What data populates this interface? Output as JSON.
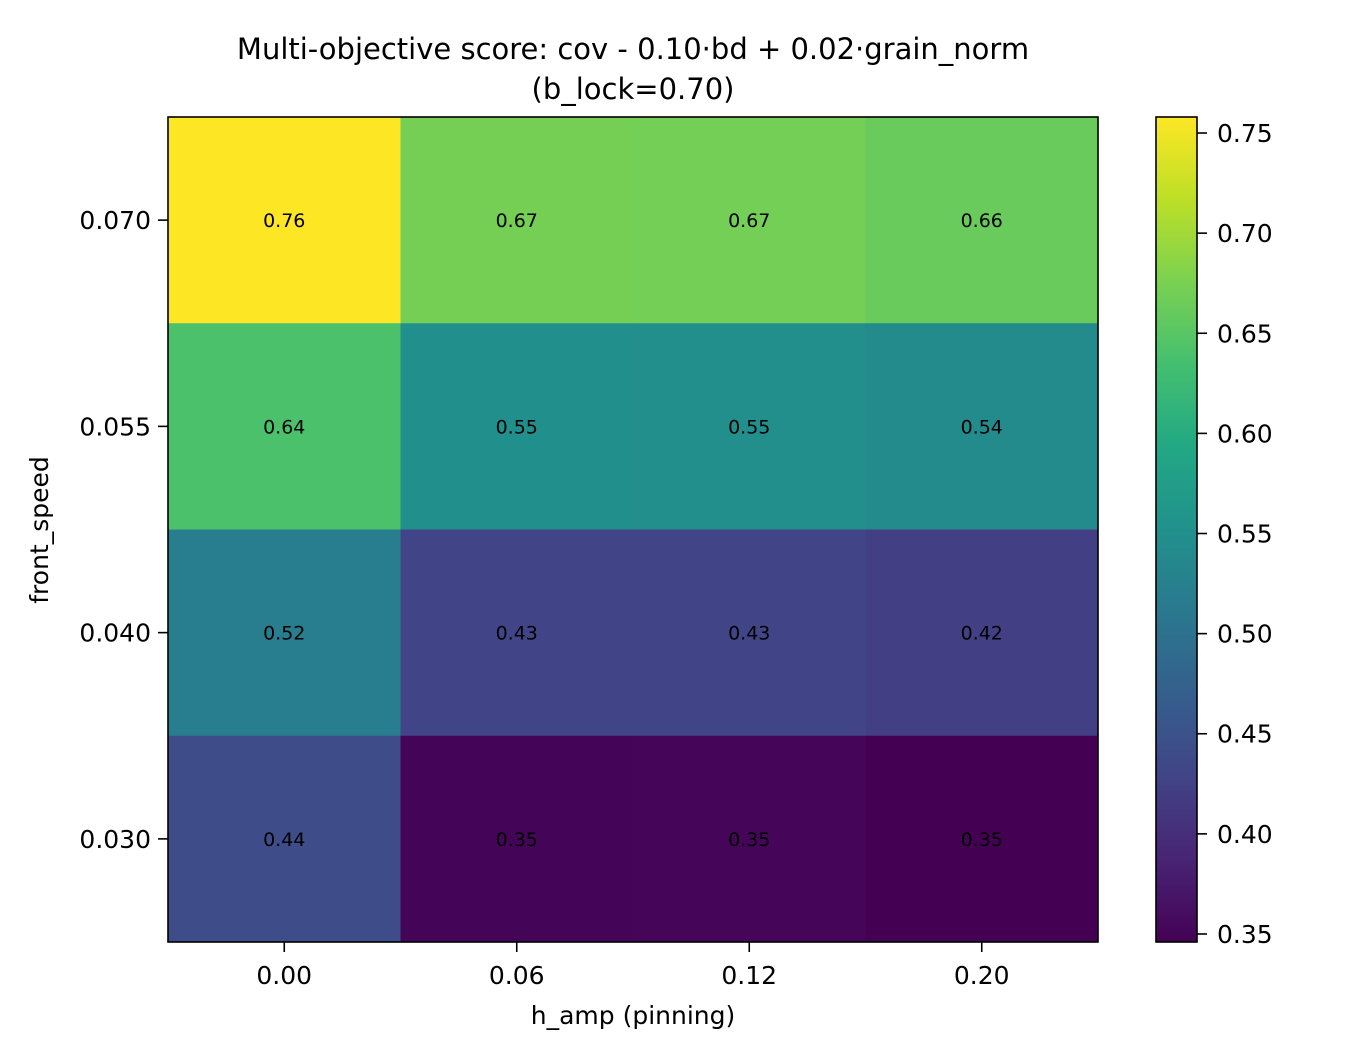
{
  "chart_data": {
    "type": "heatmap",
    "title": "Multi-objective score: cov - 0.10·bd + 0.02·grain_norm",
    "subtitle": "(b_lock=0.70)",
    "xlabel": "h_amp (pinning)",
    "ylabel": "front_speed",
    "x_categories": [
      "0.00",
      "0.06",
      "0.12",
      "0.20"
    ],
    "y_categories_top_to_bottom": [
      "0.070",
      "0.055",
      "0.040",
      "0.030"
    ],
    "values": [
      [
        0.758,
        0.672,
        0.67,
        0.662
      ],
      [
        0.64,
        0.55,
        0.548,
        0.542
      ],
      [
        0.52,
        0.43,
        0.428,
        0.422
      ],
      [
        0.44,
        0.35,
        0.352,
        0.346
      ]
    ],
    "value_labels": [
      [
        "0.76",
        "0.67",
        "0.67",
        "0.66"
      ],
      [
        "0.64",
        "0.55",
        "0.55",
        "0.54"
      ],
      [
        "0.52",
        "0.43",
        "0.43",
        "0.42"
      ],
      [
        "0.44",
        "0.35",
        "0.35",
        "0.35"
      ]
    ],
    "colormap": "viridis",
    "colorbar": {
      "range": [
        0.346,
        0.758
      ],
      "ticks": [
        0.35,
        0.4,
        0.45,
        0.5,
        0.55,
        0.6,
        0.65,
        0.7,
        0.75
      ],
      "tick_labels": [
        "0.35",
        "0.40",
        "0.45",
        "0.50",
        "0.55",
        "0.60",
        "0.65",
        "0.70",
        "0.75"
      ]
    }
  }
}
